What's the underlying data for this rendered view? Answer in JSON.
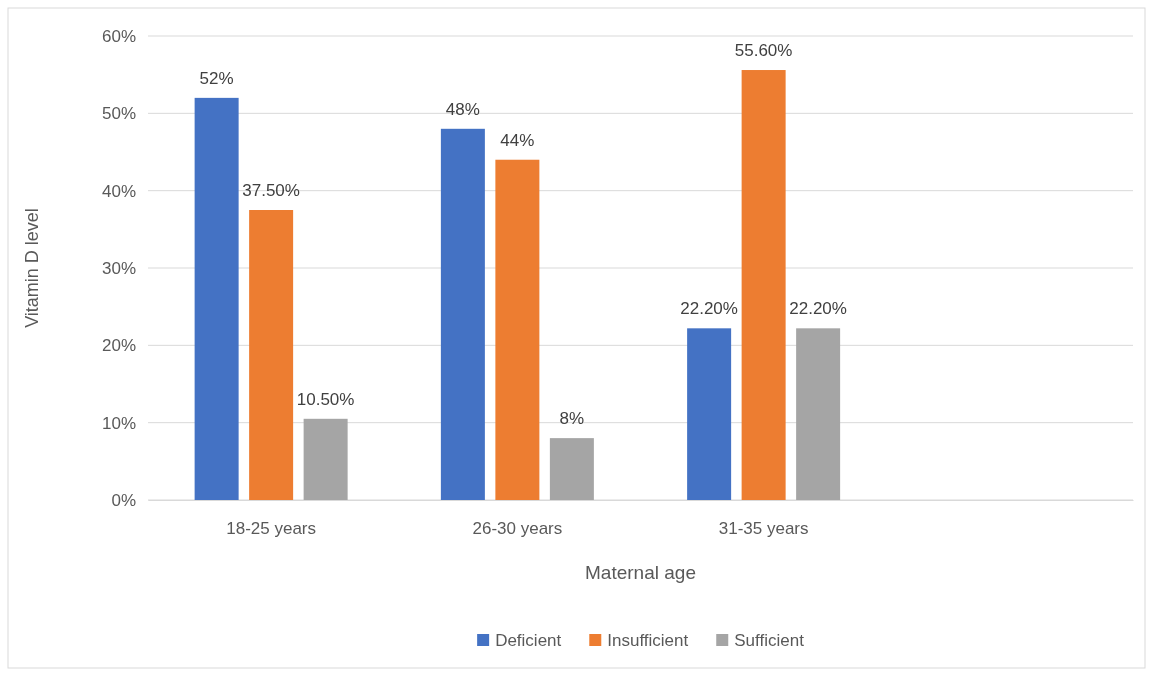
{
  "chart_data": {
    "type": "bar",
    "xlabel": "Maternal age",
    "ylabel": "Vitamin D level",
    "categories": [
      "18-25 years",
      "26-30 years",
      "31-35 years",
      null
    ],
    "series": [
      {
        "name": "Deficient",
        "color": "#4472c4",
        "values": [
          52,
          48,
          22.2,
          null
        ],
        "value_labels": [
          "52%",
          "48%",
          "22.20%",
          null
        ]
      },
      {
        "name": "Insufficient",
        "color": "#ed7d31",
        "values": [
          37.5,
          44,
          55.6,
          null
        ],
        "value_labels": [
          "37.50%",
          "44%",
          "55.60%",
          null
        ]
      },
      {
        "name": "Sufficient",
        "color": "#a5a5a5",
        "values": [
          10.5,
          8,
          22.2,
          null
        ],
        "value_labels": [
          "10.50%",
          "8%",
          "22.20%",
          null
        ]
      }
    ],
    "ylim": [
      0,
      60
    ],
    "yticks": [
      {
        "value": 0,
        "label": "0%"
      },
      {
        "value": 10,
        "label": "10%"
      },
      {
        "value": 20,
        "label": "20%"
      },
      {
        "value": 30,
        "label": "30%"
      },
      {
        "value": 40,
        "label": "40%"
      },
      {
        "value": 50,
        "label": "50%"
      },
      {
        "value": 60,
        "label": "60%"
      }
    ],
    "grid": "y",
    "legend": "bottom"
  }
}
